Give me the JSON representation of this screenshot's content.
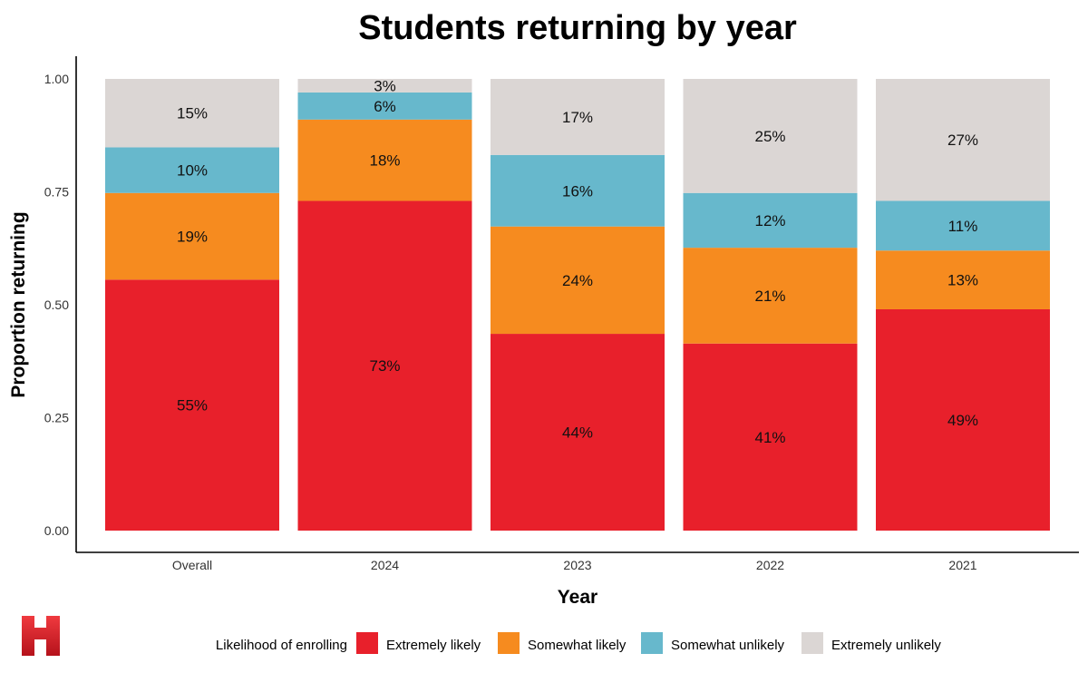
{
  "chart_data": {
    "type": "bar",
    "stacked": true,
    "title": "Students returning by year",
    "xlabel": "Year",
    "ylabel": "Proportion returning",
    "ylim": [
      0,
      1
    ],
    "yticks": [
      "0.00",
      "0.25",
      "0.50",
      "0.75",
      "1.00"
    ],
    "ytick_values": [
      0,
      0.25,
      0.5,
      0.75,
      1.0
    ],
    "categories": [
      "Overall",
      "2024",
      "2023",
      "2022",
      "2021"
    ],
    "series": [
      {
        "name": "Extremely likely",
        "color": "#e8202b",
        "values": [
          0.55,
          0.73,
          0.44,
          0.41,
          0.49
        ],
        "labels": [
          "55%",
          "73%",
          "44%",
          "41%",
          "49%"
        ]
      },
      {
        "name": "Somewhat likely",
        "color": "#f68b1f",
        "values": [
          0.19,
          0.18,
          0.24,
          0.21,
          0.13
        ],
        "labels": [
          "19%",
          "18%",
          "24%",
          "21%",
          "13%"
        ]
      },
      {
        "name": "Somewhat unlikely",
        "color": "#67b8cc",
        "values": [
          0.1,
          0.06,
          0.16,
          0.12,
          0.11
        ],
        "labels": [
          "10%",
          "6%",
          "16%",
          "12%",
          "11%"
        ]
      },
      {
        "name": "Extremely unlikely",
        "color": "#dbd6d4",
        "values": [
          0.15,
          0.03,
          0.17,
          0.25,
          0.27
        ],
        "labels": [
          "15%",
          "3%",
          "17%",
          "25%",
          "27%"
        ]
      }
    ],
    "legend": {
      "title": "Likelihood of enrolling",
      "position": "bottom"
    },
    "grid": false
  },
  "logo": {
    "icon": "h-logo-icon",
    "color": "#e8202b"
  }
}
